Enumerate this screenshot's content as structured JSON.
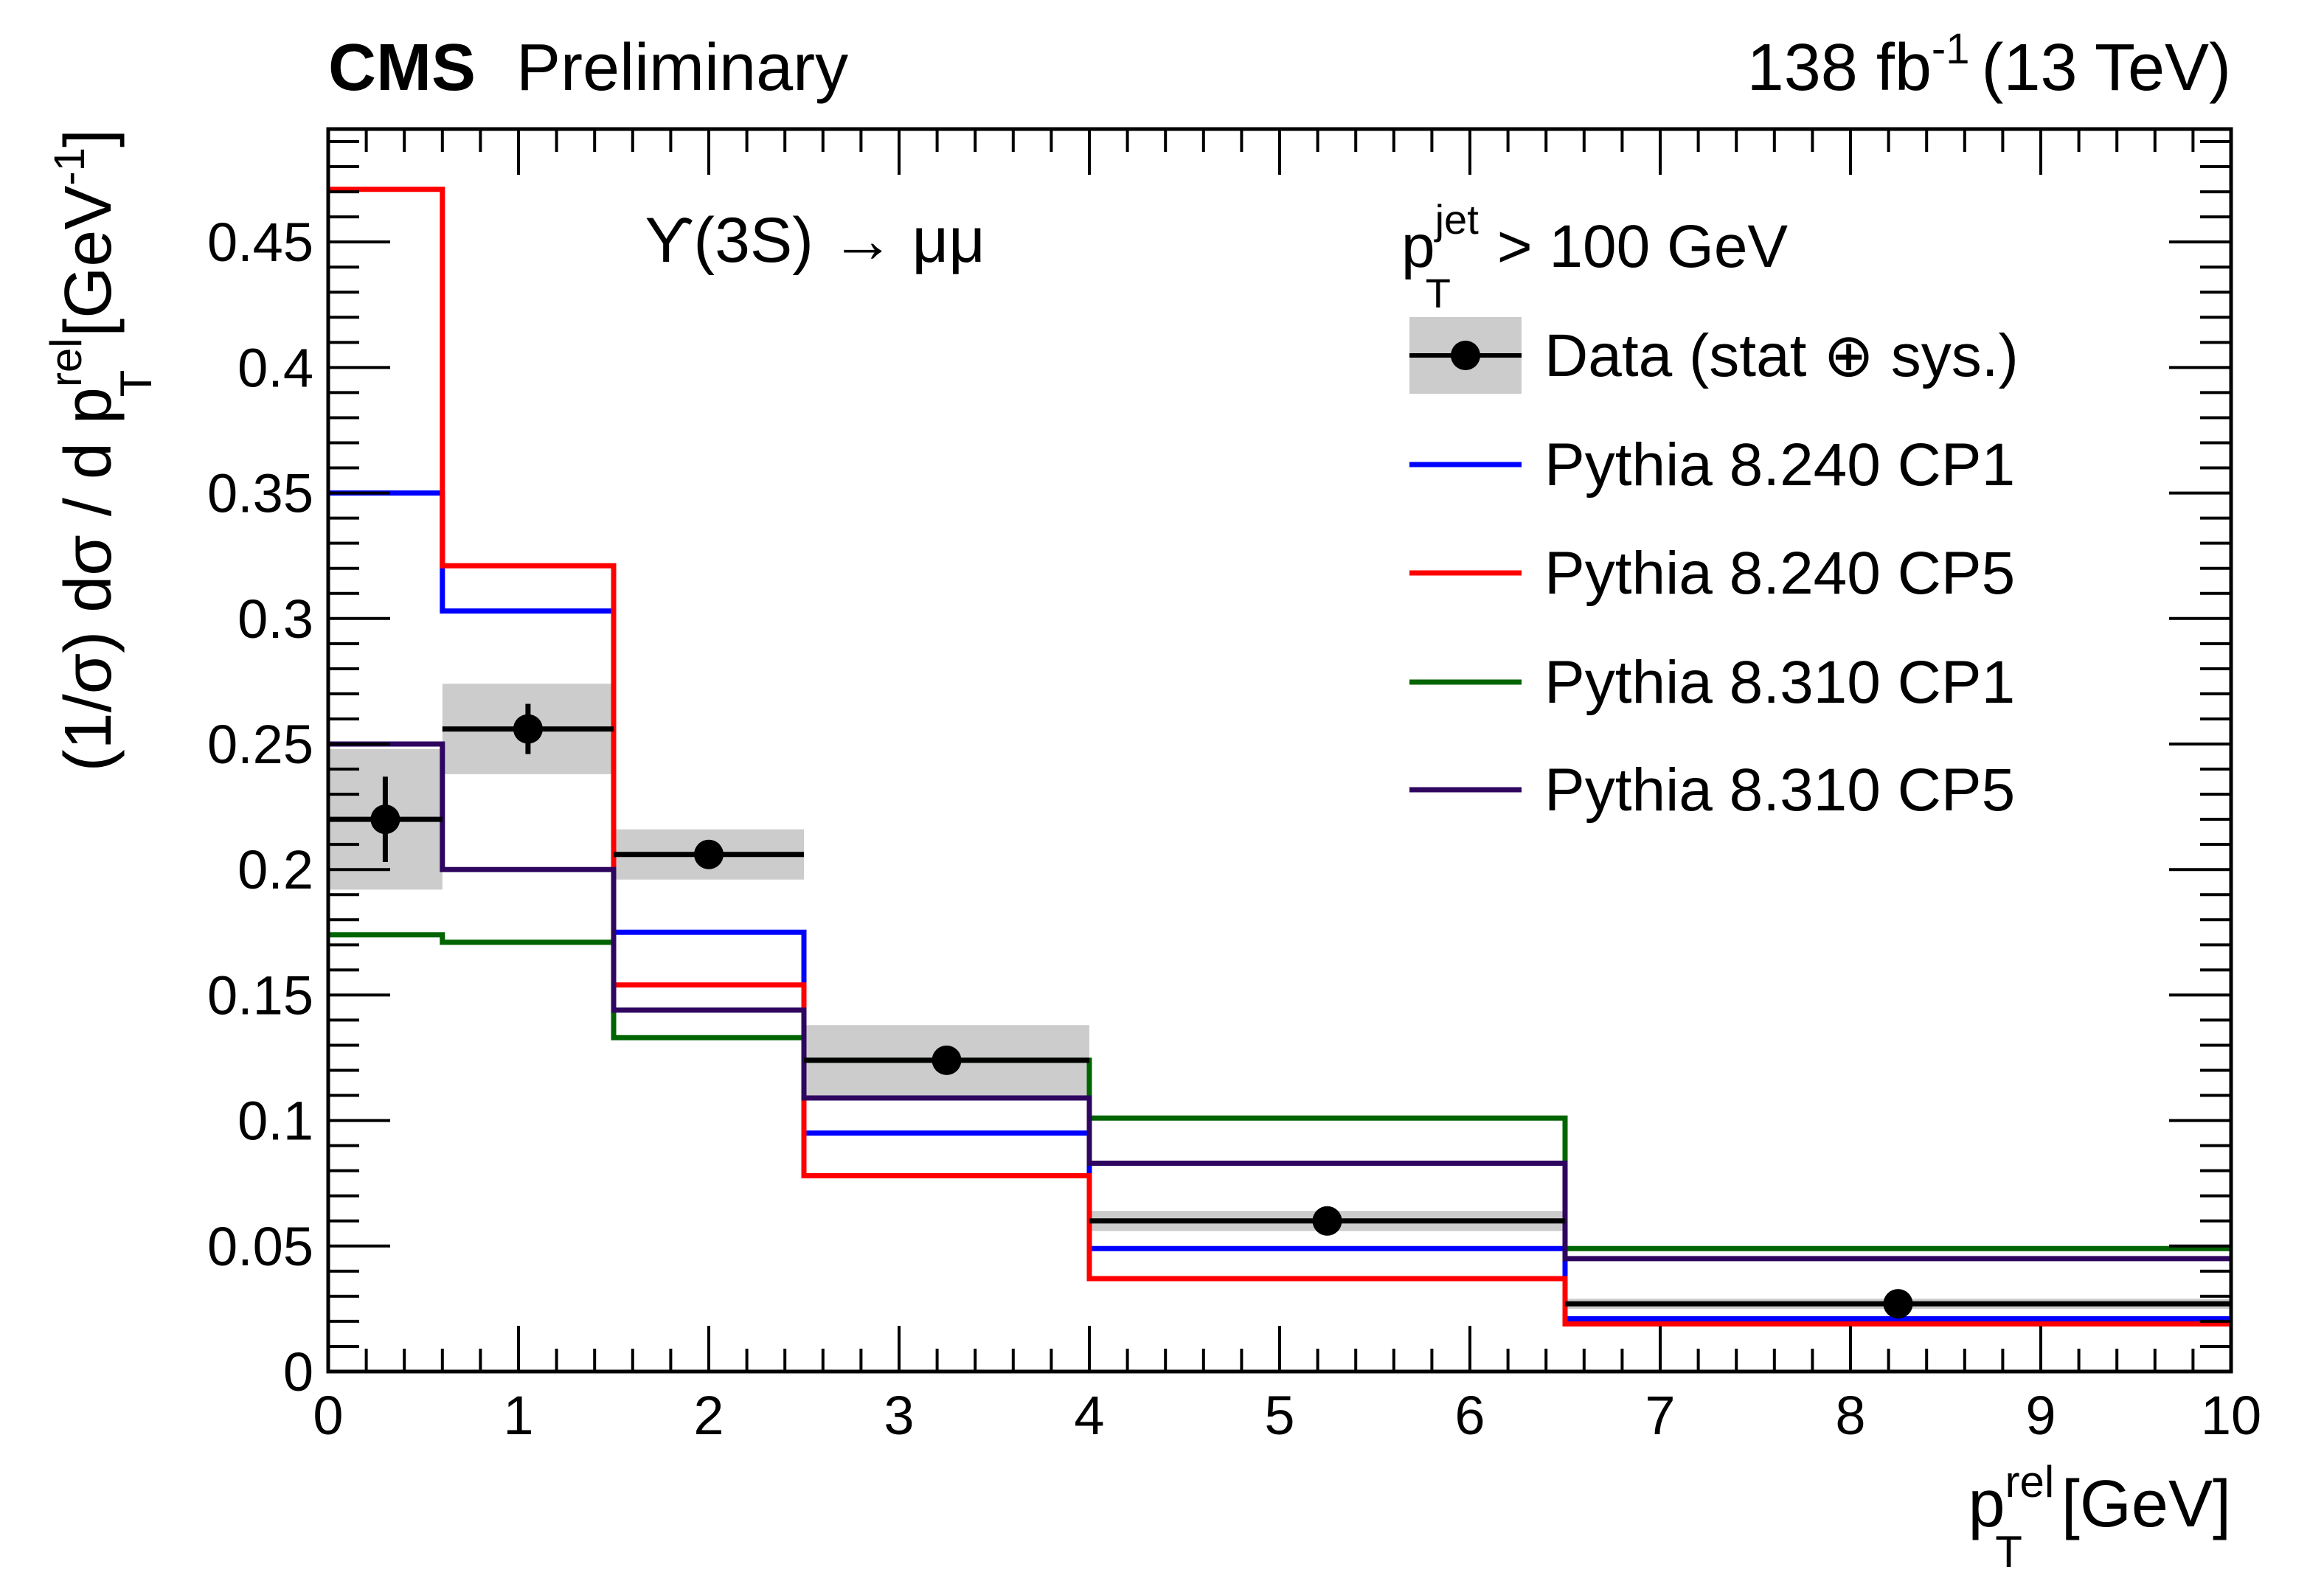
{
  "header": {
    "experiment": "CMS",
    "status": "Preliminary",
    "lumi": "138 fb",
    "lumi_exp": "-1",
    "energy": "(13 TeV)"
  },
  "annotation": "ϒ(3S) → μμ",
  "chart_data": {
    "type": "step-histogram",
    "xlabel": {
      "main": "p",
      "sub": "T",
      "sup": "rel",
      "unit": " [GeV]"
    },
    "ylabel": {
      "main": "(1/σ) dσ / d p",
      "sub": "T",
      "sup": "rel",
      "unit": " [GeV",
      "unit_exp": "-1",
      "unit_close": "]"
    },
    "xlim": [
      0,
      10
    ],
    "ylim": [
      0,
      0.495
    ],
    "x_ticks": [
      "0",
      "1",
      "2",
      "3",
      "4",
      "5",
      "6",
      "7",
      "8",
      "9",
      "10"
    ],
    "y_ticks": [
      "0",
      "0.05",
      "0.1",
      "0.15",
      "0.2",
      "0.25",
      "0.3",
      "0.35",
      "0.4",
      "0.45"
    ],
    "grid": false,
    "legend_placement": "top-right",
    "legend_header": {
      "main": "p",
      "sub": "T",
      "sup": "jet",
      "rest": " > 100 GeV"
    },
    "bin_edges": [
      0,
      0.6,
      1.5,
      2.5,
      4,
      6.5,
      10
    ],
    "data": {
      "name": "Data (stat ⊕ sys.)",
      "x": [
        0.3,
        1.05,
        2.0,
        3.25,
        5.25,
        8.25
      ],
      "y": [
        0.22,
        0.256,
        0.206,
        0.124,
        0.06,
        0.027
      ],
      "stat_err": [
        0.017,
        0.01,
        0.005,
        0.003,
        0.002,
        0.001
      ],
      "total_err": [
        0.028,
        0.018,
        0.01,
        0.014,
        0.004,
        0.002
      ],
      "band_color": "#cccccc"
    },
    "series": [
      {
        "name": "Pythia 8.240 CP1",
        "color": "#0000ff",
        "values": [
          0.35,
          0.303,
          0.175,
          0.095,
          0.049,
          0.021
        ]
      },
      {
        "name": "Pythia 8.240 CP5",
        "color": "#ff0000",
        "values": [
          0.471,
          0.321,
          0.154,
          0.078,
          0.037,
          0.019
        ]
      },
      {
        "name": "Pythia 8.310 CP1",
        "color": "#006400",
        "values": [
          0.174,
          0.171,
          0.133,
          0.124,
          0.101,
          0.049
        ]
      },
      {
        "name": "Pythia 8.310 CP5",
        "color": "#2e0660",
        "values": [
          0.25,
          0.2,
          0.144,
          0.109,
          0.083,
          0.045
        ]
      }
    ]
  }
}
